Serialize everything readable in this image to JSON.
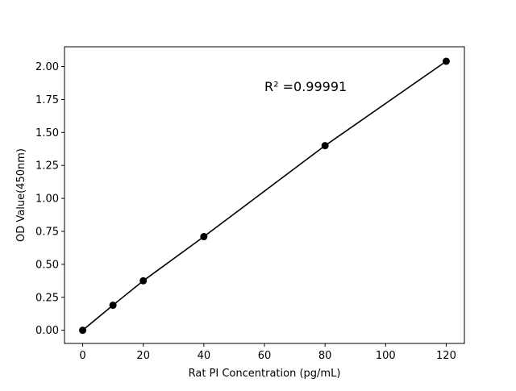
{
  "chart_data": {
    "type": "line",
    "title": "",
    "xlabel": "Rat PI Concentration (pg/mL)",
    "ylabel": "OD Value(450nm)",
    "xlim": [
      -6,
      126
    ],
    "ylim": [
      -0.1,
      2.15
    ],
    "x_ticks": [
      0,
      20,
      40,
      60,
      80,
      100,
      120
    ],
    "x_tick_labels": [
      "0",
      "20",
      "40",
      "60",
      "80",
      "100",
      "120"
    ],
    "y_ticks": [
      0.0,
      0.25,
      0.5,
      0.75,
      1.0,
      1.25,
      1.5,
      1.75,
      2.0
    ],
    "y_tick_labels": [
      "0.00",
      "0.25",
      "0.50",
      "0.75",
      "1.00",
      "1.25",
      "1.50",
      "1.75",
      "2.00"
    ],
    "grid": false,
    "series": [
      {
        "x": [
          0,
          10,
          20,
          40,
          80,
          120
        ],
        "y": [
          0.0,
          0.19,
          0.375,
          0.71,
          1.4,
          2.04
        ],
        "color": "#000000",
        "marker": "circle"
      }
    ],
    "annotations": [
      {
        "text": "R² =0.99991",
        "x": 60,
        "y": 1.85
      }
    ]
  }
}
